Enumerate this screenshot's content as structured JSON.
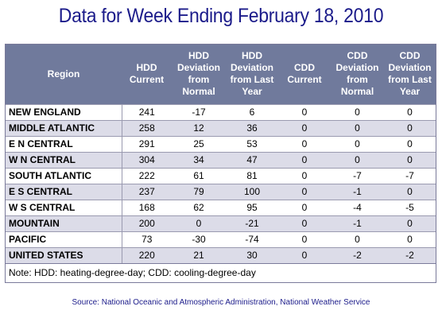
{
  "title": "Data for Week Ending February 18, 2010",
  "table": {
    "headers": [
      "Region",
      "HDD Current",
      "HDD Deviation from Normal",
      "HDD Deviation from Last Year",
      "CDD Current",
      "CDD Deviation from Normal",
      "CDD Deviation from Last Year"
    ],
    "rows": [
      [
        "NEW ENGLAND",
        "241",
        "-17",
        "6",
        "0",
        "0",
        "0"
      ],
      [
        "MIDDLE ATLANTIC",
        "258",
        "12",
        "36",
        "0",
        "0",
        "0"
      ],
      [
        "E N CENTRAL",
        "291",
        "25",
        "53",
        "0",
        "0",
        "0"
      ],
      [
        "W N CENTRAL",
        "304",
        "34",
        "47",
        "0",
        "0",
        "0"
      ],
      [
        "SOUTH ATLANTIC",
        "222",
        "61",
        "81",
        "0",
        "-7",
        "-7"
      ],
      [
        "E S CENTRAL",
        "237",
        "79",
        "100",
        "0",
        "-1",
        "0"
      ],
      [
        "W S CENTRAL",
        "168",
        "62",
        "95",
        "0",
        "-4",
        "-5"
      ],
      [
        "MOUNTAIN",
        "200",
        "0",
        "-21",
        "0",
        "-1",
        "0"
      ],
      [
        "PACIFIC",
        "73",
        "-30",
        "-74",
        "0",
        "0",
        "0"
      ],
      [
        "UNITED STATES",
        "220",
        "21",
        "30",
        "0",
        "-2",
        "-2"
      ]
    ],
    "note": "Note: HDD: heating-degree-day; CDD: cooling-degree-day"
  },
  "source": "Source:  National Oceanic and Atmospheric Administration, National Weather Service",
  "colors": {
    "title": "#1b1b8a",
    "header_bg": "#707a9c",
    "row_alt_bg": "#dcdce8"
  }
}
